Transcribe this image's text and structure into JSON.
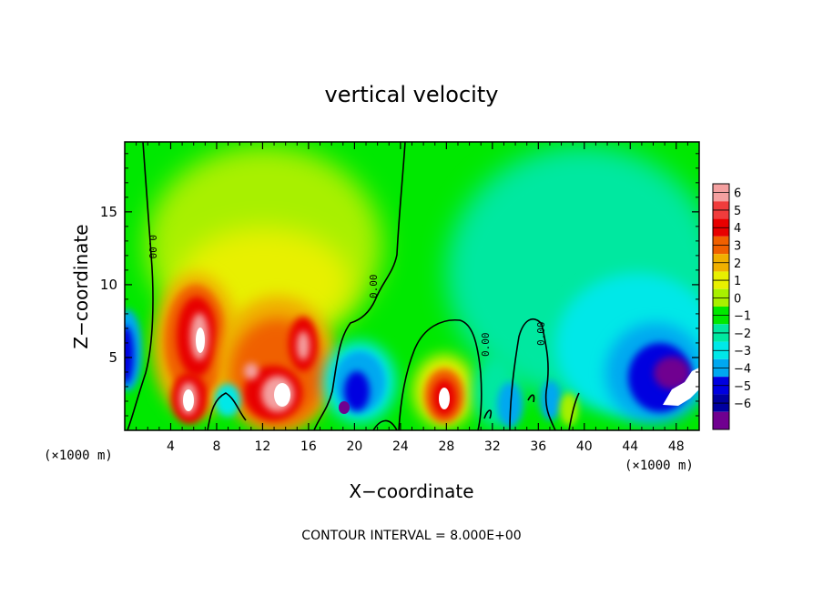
{
  "chart_data": {
    "type": "heatmap",
    "title": "vertical velocity",
    "xlabel": "X−coordinate",
    "ylabel": "Z−coordinate",
    "x_unit_left": "(×1000 m)",
    "x_unit_right": "(×1000 m)",
    "xlim": [
      0,
      50
    ],
    "ylim": [
      0,
      19.8
    ],
    "x_ticks": [
      4,
      8,
      12,
      16,
      20,
      24,
      28,
      32,
      36,
      40,
      44,
      48
    ],
    "y_ticks": [
      5,
      10,
      15
    ],
    "footer": "CONTOUR INTERVAL = 8.000E+00",
    "contour_label": "0.00",
    "colorbar": {
      "levels": [
        6,
        5,
        4,
        3,
        2,
        1,
        0,
        -1,
        -2,
        -3,
        -4,
        -5,
        -6
      ],
      "level_labels": [
        "6",
        "5",
        "4",
        "3",
        "2",
        "1",
        "0",
        "−1",
        "−2",
        "−3",
        "−4",
        "−5",
        "−6"
      ],
      "colors": [
        "#f4a0a0",
        "#f03c3c",
        "#e80000",
        "#f06000",
        "#f0b000",
        "#e8f000",
        "#a8f000",
        "#00e800",
        "#00e8a0",
        "#00e8e8",
        "#00a8f0",
        "#0000e0",
        "#0000a0",
        "#700090"
      ]
    },
    "cells": [
      {
        "x": 1,
        "z": 3,
        "value": -5
      },
      {
        "x": 6,
        "z": 7,
        "value": 6
      },
      {
        "x": 6,
        "z": 2,
        "value": 6
      },
      {
        "x": 13,
        "z": 2,
        "value": 6
      },
      {
        "x": 15,
        "z": 6,
        "value": 5
      },
      {
        "x": 10,
        "z": 4,
        "value": 3
      },
      {
        "x": 12,
        "z": 13,
        "value": 1
      },
      {
        "x": 20,
        "z": 3,
        "value": -4
      },
      {
        "x": 28,
        "z": 2,
        "value": 6
      },
      {
        "x": 42,
        "z": 7,
        "value": -2
      },
      {
        "x": 47,
        "z": 4,
        "value": -6
      },
      {
        "x": 48,
        "z": 3,
        "value": 6
      }
    ]
  }
}
